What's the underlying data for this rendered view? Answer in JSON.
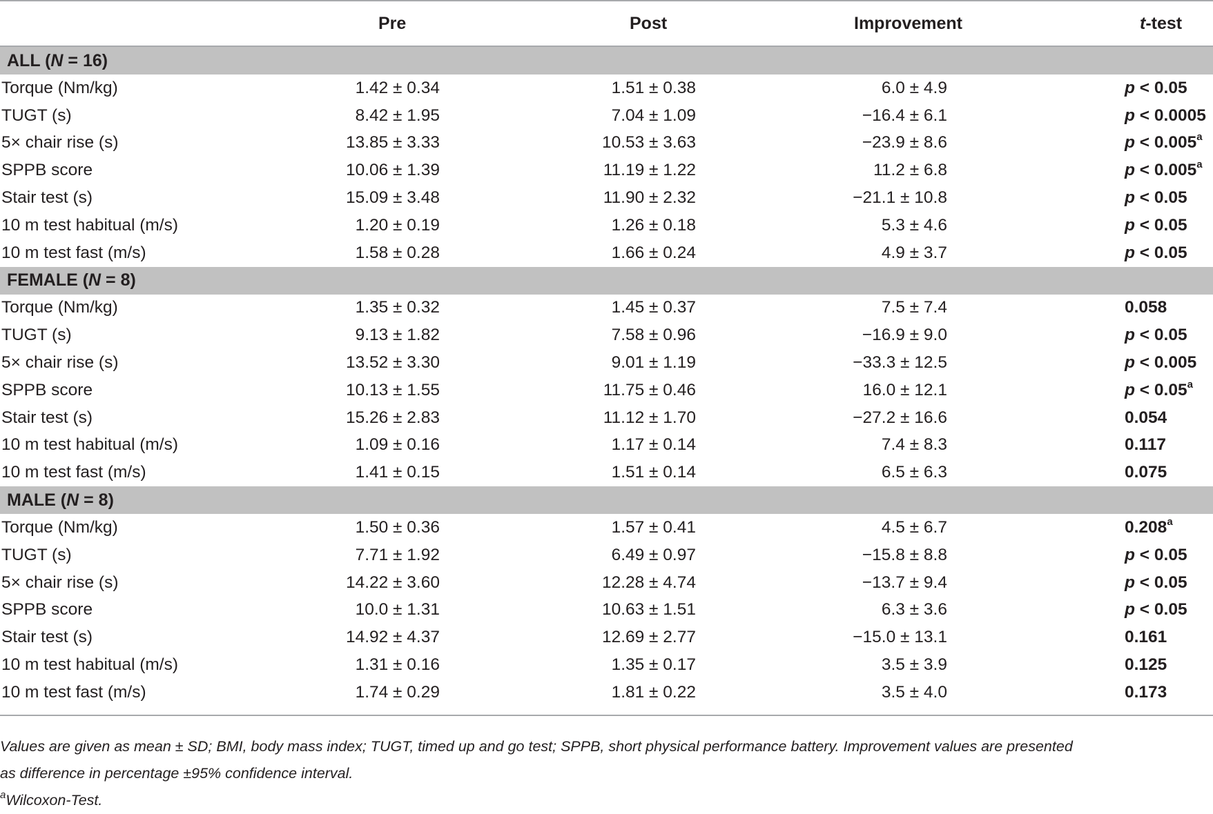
{
  "header": {
    "pre": "Pre",
    "post": "Post",
    "improvement": "Improvement",
    "ttest": "t-test"
  },
  "sections": [
    {
      "title": "ALL (N = 16)",
      "rows": [
        {
          "label": "Torque (Nm/kg)",
          "pre": "1.42 ± 0.34",
          "post": "1.51 ± 0.38",
          "improvement": "6.0 ± 4.9",
          "ttest": "p < 0.05",
          "sup": ""
        },
        {
          "label": "TUGT (s)",
          "pre": "8.42 ± 1.95",
          "post": "7.04 ± 1.09",
          "improvement": "−16.4 ± 6.1",
          "ttest": "p < 0.0005",
          "sup": ""
        },
        {
          "label": "5× chair rise (s)",
          "pre": "13.85 ± 3.33",
          "post": "10.53 ± 3.63",
          "improvement": "−23.9 ± 8.6",
          "ttest": "p < 0.005",
          "sup": "a"
        },
        {
          "label": "SPPB score",
          "pre": "10.06 ± 1.39",
          "post": "11.19 ± 1.22",
          "improvement": "11.2 ± 6.8",
          "ttest": "p < 0.005",
          "sup": "a"
        },
        {
          "label": "Stair test (s)",
          "pre": "15.09 ± 3.48",
          "post": "11.90 ± 2.32",
          "improvement": "−21.1 ± 10.8",
          "ttest": "p < 0.05",
          "sup": ""
        },
        {
          "label": "10 m test habitual (m/s)",
          "pre": "1.20 ± 0.19",
          "post": "1.26 ± 0.18",
          "improvement": "5.3 ± 4.6",
          "ttest": "p < 0.05",
          "sup": ""
        },
        {
          "label": "10 m test fast (m/s)",
          "pre": "1.58 ± 0.28",
          "post": "1.66 ± 0.24",
          "improvement": "4.9 ± 3.7",
          "ttest": "p < 0.05",
          "sup": ""
        }
      ]
    },
    {
      "title": "FEMALE (N = 8)",
      "rows": [
        {
          "label": "Torque (Nm/kg)",
          "pre": "1.35 ± 0.32",
          "post": "1.45 ± 0.37",
          "improvement": "7.5 ± 7.4",
          "ttest": "0.058",
          "sup": ""
        },
        {
          "label": "TUGT (s)",
          "pre": "9.13 ± 1.82",
          "post": "7.58 ± 0.96",
          "improvement": "−16.9 ± 9.0",
          "ttest": "p < 0.05",
          "sup": ""
        },
        {
          "label": "5× chair rise (s)",
          "pre": "13.52 ± 3.30",
          "post": "9.01 ± 1.19",
          "improvement": "−33.3 ± 12.5",
          "ttest": "p < 0.005",
          "sup": ""
        },
        {
          "label": "SPPB score",
          "pre": "10.13 ± 1.55",
          "post": "11.75 ± 0.46",
          "improvement": "16.0 ± 12.1",
          "ttest": "p < 0.05",
          "sup": "a"
        },
        {
          "label": "Stair test (s)",
          "pre": "15.26 ± 2.83",
          "post": "11.12 ± 1.70",
          "improvement": "−27.2 ± 16.6",
          "ttest": "0.054",
          "sup": ""
        },
        {
          "label": "10 m test habitual (m/s)",
          "pre": "1.09 ± 0.16",
          "post": "1.17 ± 0.14",
          "improvement": "7.4 ± 8.3",
          "ttest": "0.117",
          "sup": ""
        },
        {
          "label": "10 m test fast (m/s)",
          "pre": "1.41 ± 0.15",
          "post": "1.51 ± 0.14",
          "improvement": "6.5 ± 6.3",
          "ttest": "0.075",
          "sup": ""
        }
      ]
    },
    {
      "title": "MALE (N = 8)",
      "rows": [
        {
          "label": "Torque (Nm/kg)",
          "pre": "1.50 ± 0.36",
          "post": "1.57 ± 0.41",
          "improvement": "4.5 ± 6.7",
          "ttest": "0.208",
          "sup": "a"
        },
        {
          "label": "TUGT (s)",
          "pre": "7.71 ± 1.92",
          "post": "6.49 ± 0.97",
          "improvement": "−15.8 ± 8.8",
          "ttest": "p < 0.05",
          "sup": ""
        },
        {
          "label": "5× chair rise (s)",
          "pre": "14.22 ± 3.60",
          "post": "12.28 ± 4.74",
          "improvement": "−13.7 ± 9.4",
          "ttest": "p < 0.05",
          "sup": ""
        },
        {
          "label": "SPPB score",
          "pre": "10.0 ± 1.31",
          "post": "10.63 ± 1.51",
          "improvement": "6.3 ± 3.6",
          "ttest": "p < 0.05",
          "sup": ""
        },
        {
          "label": "Stair test (s)",
          "pre": "14.92 ± 4.37",
          "post": "12.69 ± 2.77",
          "improvement": "−15.0 ± 13.1",
          "ttest": "0.161",
          "sup": ""
        },
        {
          "label": "10 m test habitual (m/s)",
          "pre": "1.31 ± 0.16",
          "post": "1.35 ± 0.17",
          "improvement": "3.5 ± 3.9",
          "ttest": "0.125",
          "sup": ""
        },
        {
          "label": "10 m test fast (m/s)",
          "pre": "1.74 ± 0.29",
          "post": "1.81 ± 0.22",
          "improvement": "3.5 ± 4.0",
          "ttest": "0.173",
          "sup": ""
        }
      ]
    }
  ],
  "footer": {
    "line1": "Values are given as mean ± SD; BMI, body mass index; TUGT, timed up and go test; SPPB, short physical performance battery. Improvement values are presented",
    "line2": "as difference in percentage ±95% confidence interval.",
    "note_marker": "a",
    "note_text": "Wilcoxon-Test."
  }
}
